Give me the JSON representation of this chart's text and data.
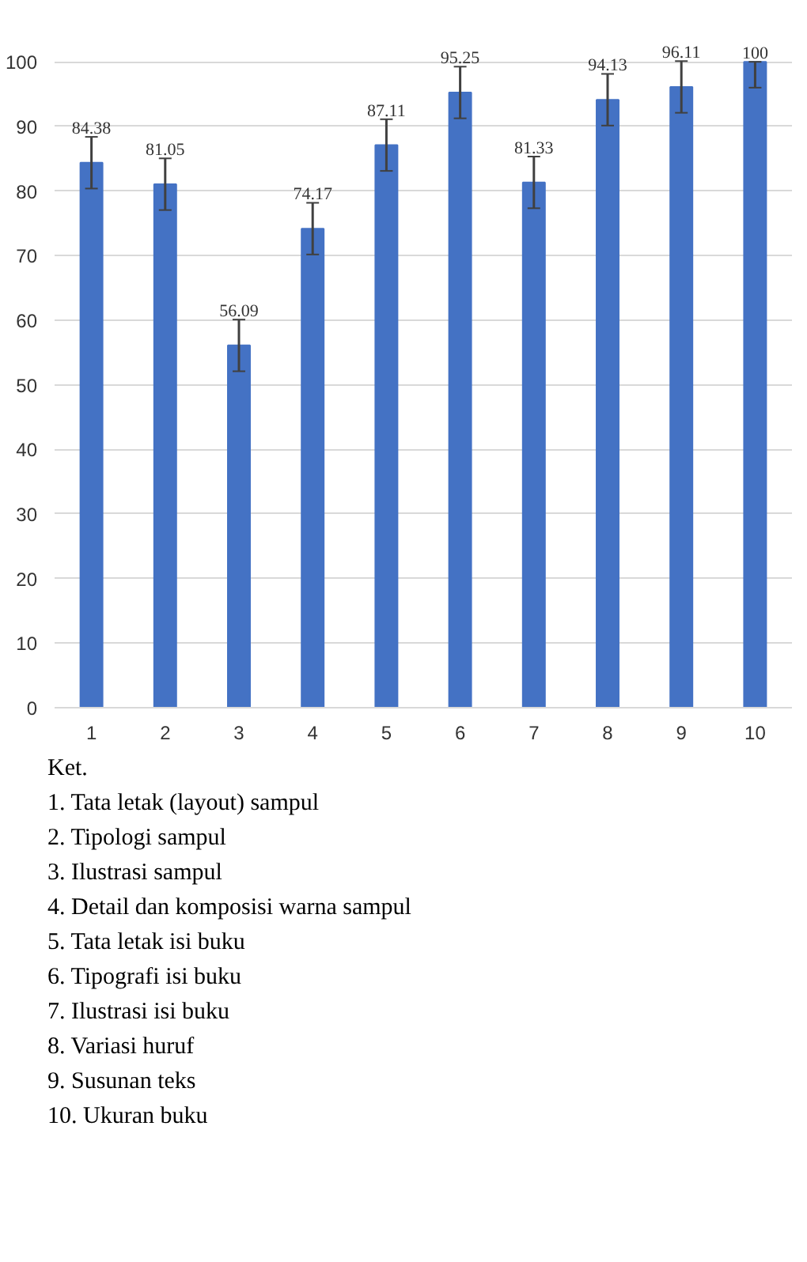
{
  "chart_data": {
    "type": "bar",
    "categories": [
      "1",
      "2",
      "3",
      "4",
      "5",
      "6",
      "7",
      "8",
      "9",
      "10"
    ],
    "values": [
      84.38,
      81.05,
      56.09,
      74.17,
      87.11,
      95.25,
      81.33,
      94.13,
      96.11,
      100
    ],
    "errors": [
      4,
      4,
      4,
      4,
      4,
      4,
      4,
      4,
      4,
      [
        96,
        100
      ]
    ],
    "color": "#4472c4",
    "data_labels": true,
    "ylim": [
      0,
      100
    ],
    "yticks": [
      0,
      10,
      20,
      30,
      40,
      50,
      60,
      70,
      80,
      90,
      100
    ],
    "grid": "y",
    "annotations": [
      "Ket.",
      "1. Tata letak (layout) sampul",
      "2. Tipologi sampul",
      "3. Ilustrasi sampul",
      "4. Detail dan komposisi warna sampul",
      "5. Tata letak isi buku",
      "6. Tipografi isi buku",
      "7. Ilustrasi isi buku",
      "8. Variasi huruf",
      "9. Susunan teks",
      "10. Ukuran buku"
    ]
  }
}
